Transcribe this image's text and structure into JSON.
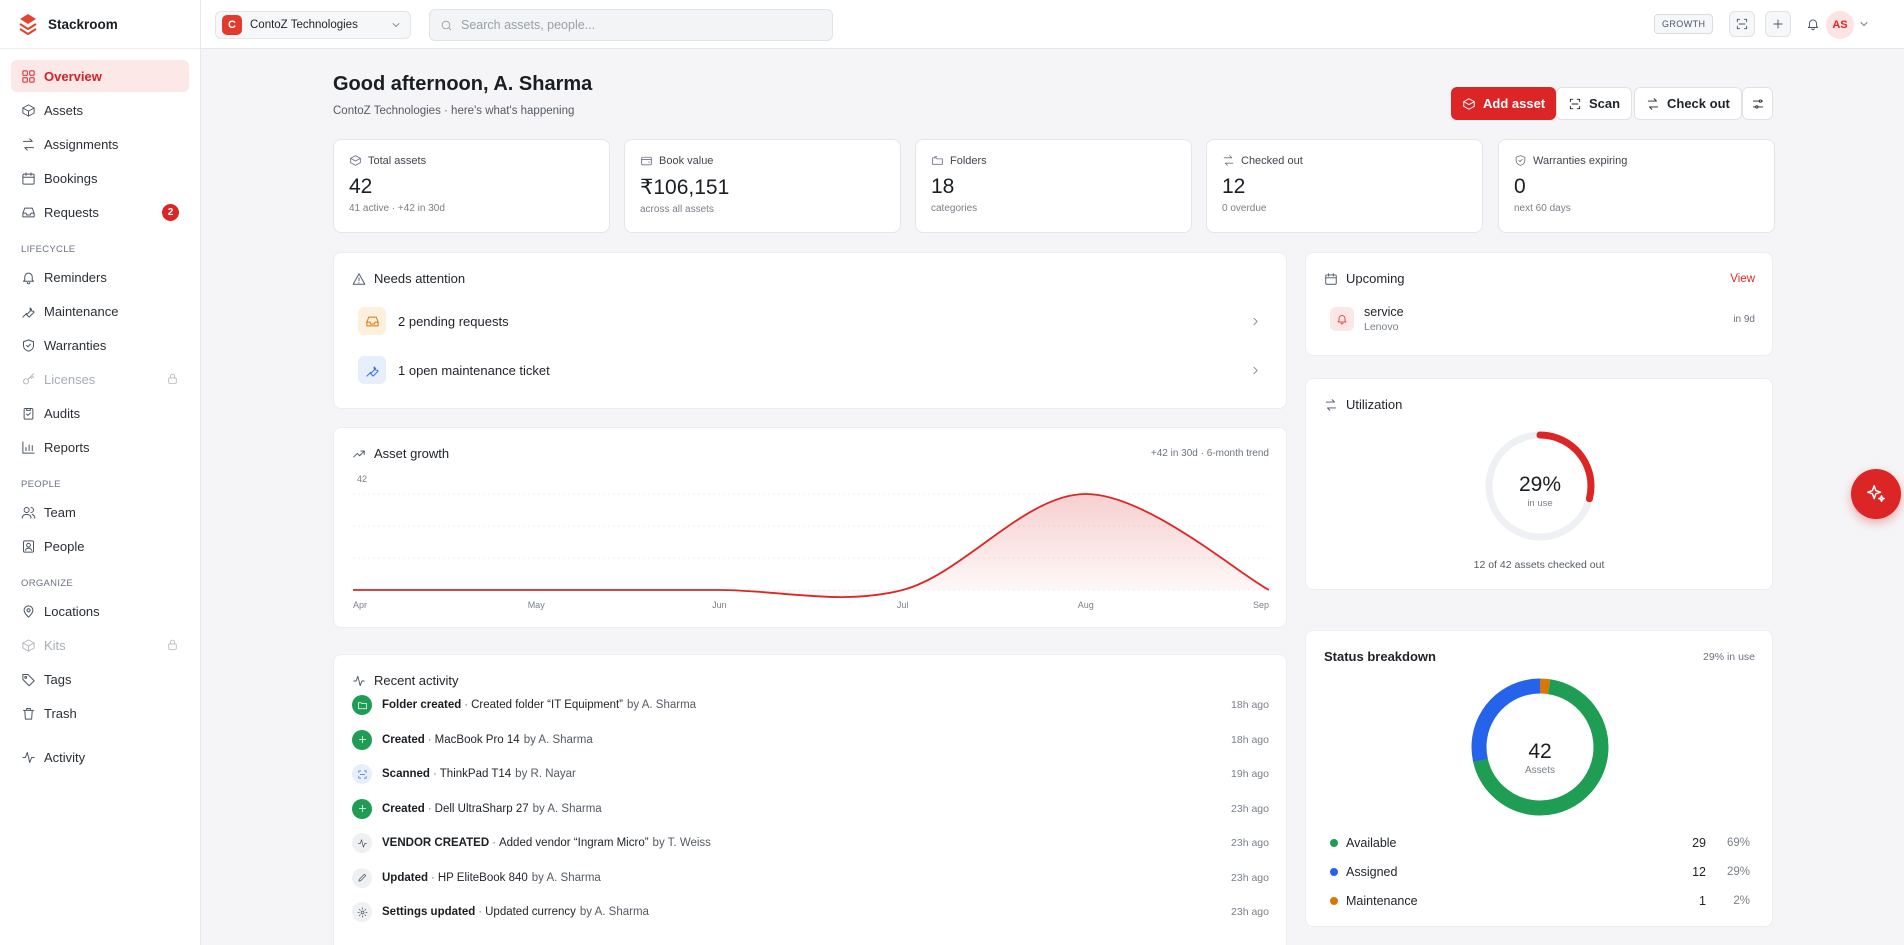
{
  "app": {
    "name": "Stackroom"
  },
  "colors": {
    "accent": "#dc2626",
    "available": "#1f9d55",
    "assigned": "#2563eb",
    "maintenance": "#d97706"
  },
  "org": {
    "name": "ContoZ Technologies",
    "initial": "C"
  },
  "search": {
    "placeholder": "Search assets, people..."
  },
  "topbar": {
    "plan": "GROWTH",
    "user_initials": "AS"
  },
  "sidebar": {
    "main": [
      {
        "label": "Overview",
        "icon": "grid-icon"
      },
      {
        "label": "Assets",
        "icon": "box-icon"
      },
      {
        "label": "Assignments",
        "icon": "swap-icon"
      },
      {
        "label": "Bookings",
        "icon": "calendar-icon"
      },
      {
        "label": "Requests",
        "icon": "inbox-icon",
        "badge": "2"
      }
    ],
    "lifecycle_title": "LIFECYCLE",
    "lifecycle": [
      {
        "label": "Reminders",
        "icon": "bell-icon"
      },
      {
        "label": "Maintenance",
        "icon": "wrench-icon"
      },
      {
        "label": "Warranties",
        "icon": "shield-icon"
      },
      {
        "label": "Licenses",
        "icon": "key-icon"
      },
      {
        "label": "Audits",
        "icon": "clipboard-icon"
      },
      {
        "label": "Reports",
        "icon": "bar-chart-icon"
      }
    ],
    "people_title": "PEOPLE",
    "people": [
      {
        "label": "Team",
        "icon": "users-icon"
      },
      {
        "label": "People",
        "icon": "contact-icon"
      }
    ],
    "organize_title": "ORGANIZE",
    "organize": [
      {
        "label": "Locations",
        "icon": "map-pin-icon"
      },
      {
        "label": "Kits",
        "icon": "package-icon"
      },
      {
        "label": "Tags",
        "icon": "tag-icon"
      },
      {
        "label": "Trash",
        "icon": "trash-icon"
      }
    ],
    "activity": {
      "label": "Activity",
      "icon": "activity-icon"
    }
  },
  "header": {
    "greeting": "Good afternoon, A. Sharma",
    "subtitle": "ContoZ Technologies · here's what's happening",
    "add_asset": "Add asset",
    "scan": "Scan",
    "check_out": "Check out"
  },
  "kpis": [
    {
      "label": "Total assets",
      "value": "42",
      "sub": "41 active · +42 in 30d"
    },
    {
      "label": "Book value",
      "value": "₹106,151",
      "sub": "across all assets"
    },
    {
      "label": "Folders",
      "value": "18",
      "sub": "categories"
    },
    {
      "label": "Checked out",
      "value": "12",
      "sub": "0 overdue"
    },
    {
      "label": "Warranties expiring",
      "value": "0",
      "sub": "next 60 days"
    }
  ],
  "attention": {
    "title": "Needs attention",
    "items": [
      {
        "label": "2 pending requests"
      },
      {
        "label": "1 open maintenance ticket"
      }
    ]
  },
  "growth": {
    "title": "Asset growth",
    "note": "+42 in 30d · 6-month trend"
  },
  "chart_data": {
    "type": "area",
    "title": "Asset growth",
    "categories": [
      "Apr",
      "May",
      "Jun",
      "Jul",
      "Aug",
      "Sep"
    ],
    "series": [
      {
        "values": [
          0,
          0,
          0,
          0,
          42,
          0
        ]
      }
    ],
    "ylim": [
      0,
      42
    ],
    "y_tick_labels": [
      "42"
    ]
  },
  "upcoming": {
    "title": "Upcoming",
    "view": "View",
    "items": [
      {
        "title": "service",
        "sub": "Lenovo",
        "when": "in 9d"
      }
    ]
  },
  "utilization": {
    "title": "Utilization",
    "percent": "29%",
    "value": 0.29,
    "label": "in use",
    "caption": "12 of 42 assets checked out"
  },
  "status": {
    "title": "Status breakdown",
    "note": "29% in use",
    "total": "42",
    "total_label": "Assets",
    "items": [
      {
        "label": "Available",
        "count": "29",
        "pct": "69%",
        "value": 29
      },
      {
        "label": "Assigned",
        "count": "12",
        "pct": "29%",
        "value": 12
      },
      {
        "label": "Maintenance",
        "count": "1",
        "pct": "2%",
        "value": 1
      }
    ]
  },
  "activity": {
    "title": "Recent activity",
    "items": [
      {
        "title": "Folder created",
        "detail": "Created folder “IT Equipment”",
        "by": "by A. Sharma",
        "time": "18h ago",
        "icon": "folder-icon"
      },
      {
        "title": "Created",
        "detail": "MacBook Pro 14",
        "by": "by A. Sharma",
        "time": "18h ago",
        "icon": "plus-icon"
      },
      {
        "title": "Scanned",
        "detail": "ThinkPad T14",
        "by": "by R. Nayar",
        "time": "19h ago",
        "icon": "scan-icon"
      },
      {
        "title": "Created",
        "detail": "Dell UltraSharp 27",
        "by": "by A. Sharma",
        "time": "23h ago",
        "icon": "plus-icon"
      },
      {
        "title": "VENDOR CREATED",
        "detail": "Added vendor “Ingram Micro”",
        "by": "by T. Weiss",
        "time": "23h ago",
        "icon": "pulse-icon"
      },
      {
        "title": "Updated",
        "detail": "HP EliteBook 840",
        "by": "by A. Sharma",
        "time": "23h ago",
        "icon": "pencil-icon"
      },
      {
        "title": "Settings updated",
        "detail": "Updated currency",
        "by": "by A. Sharma",
        "time": "23h ago",
        "icon": "gear-icon"
      }
    ]
  }
}
